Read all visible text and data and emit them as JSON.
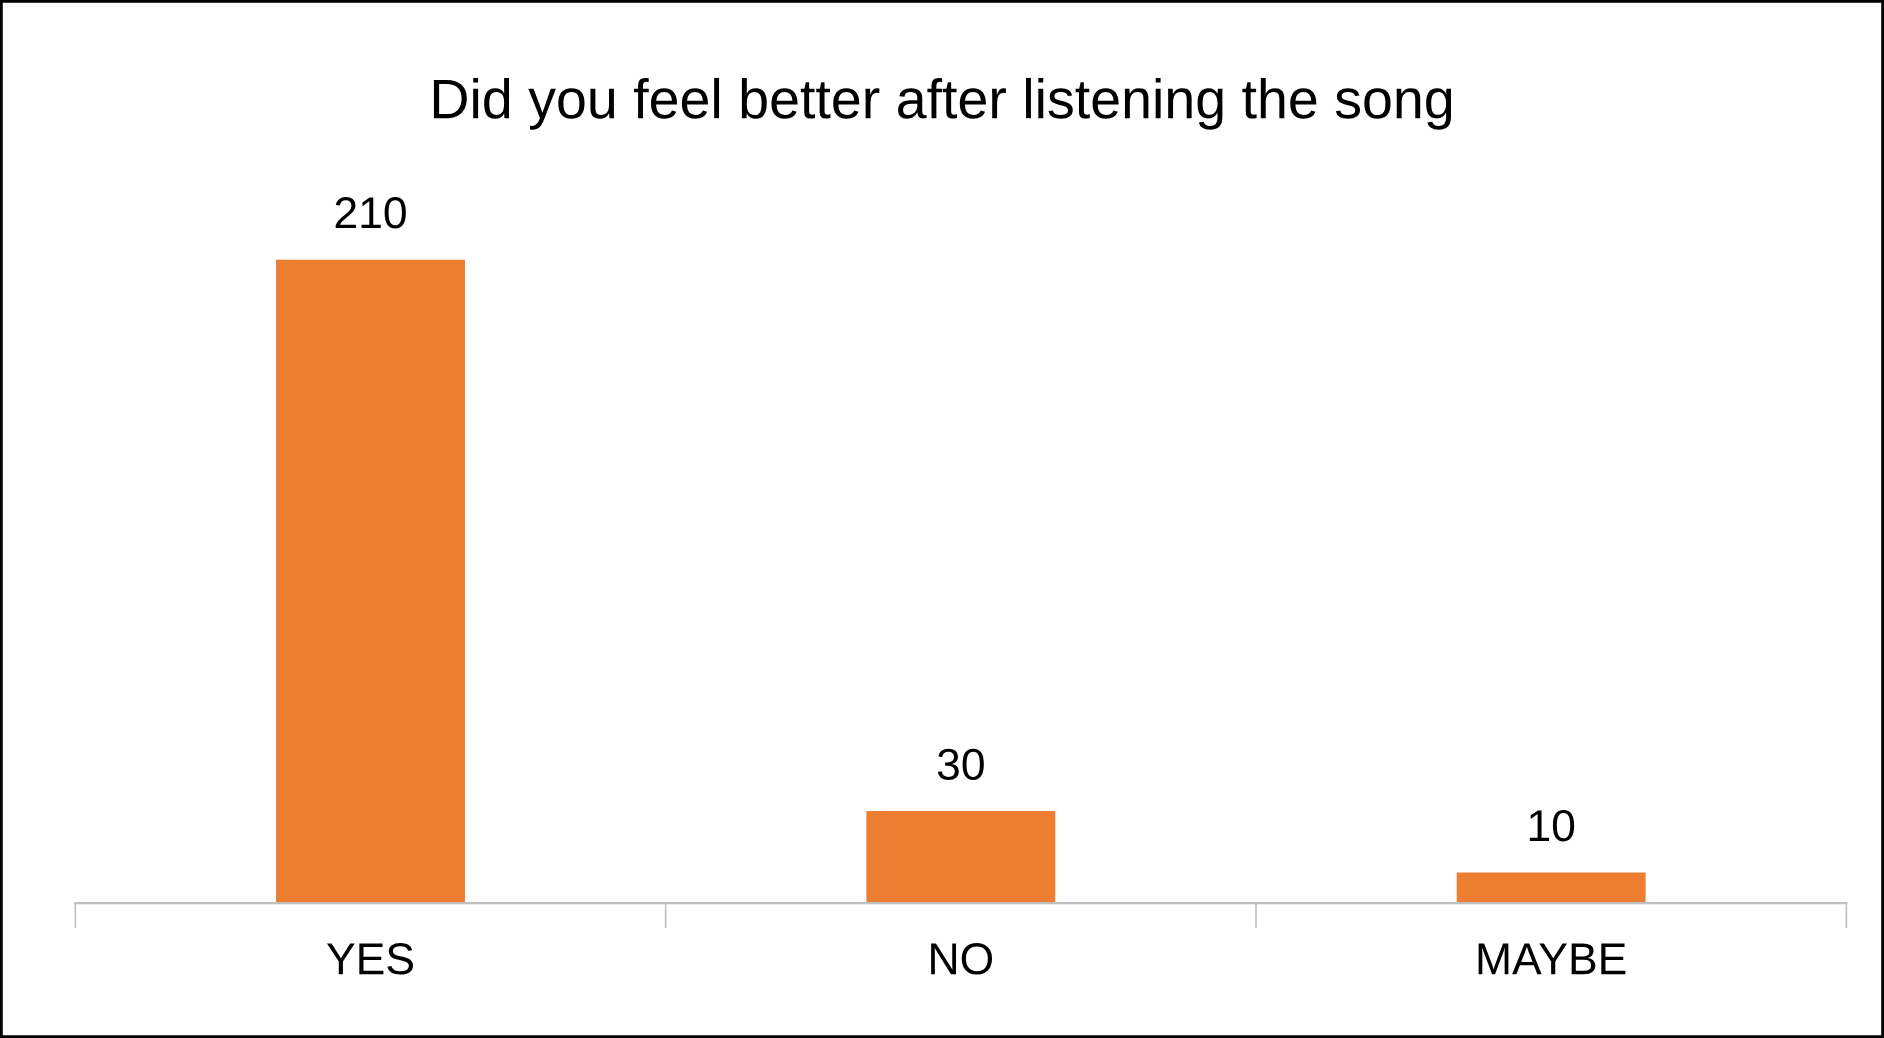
{
  "chart_data": {
    "type": "bar",
    "title": "Did you feel better after listening the song",
    "categories": [
      "YES",
      "NO",
      "MAYBE"
    ],
    "values": [
      210,
      30,
      10
    ],
    "color": "#ed7d31",
    "data_labels": true,
    "grid": false,
    "legend": false
  }
}
